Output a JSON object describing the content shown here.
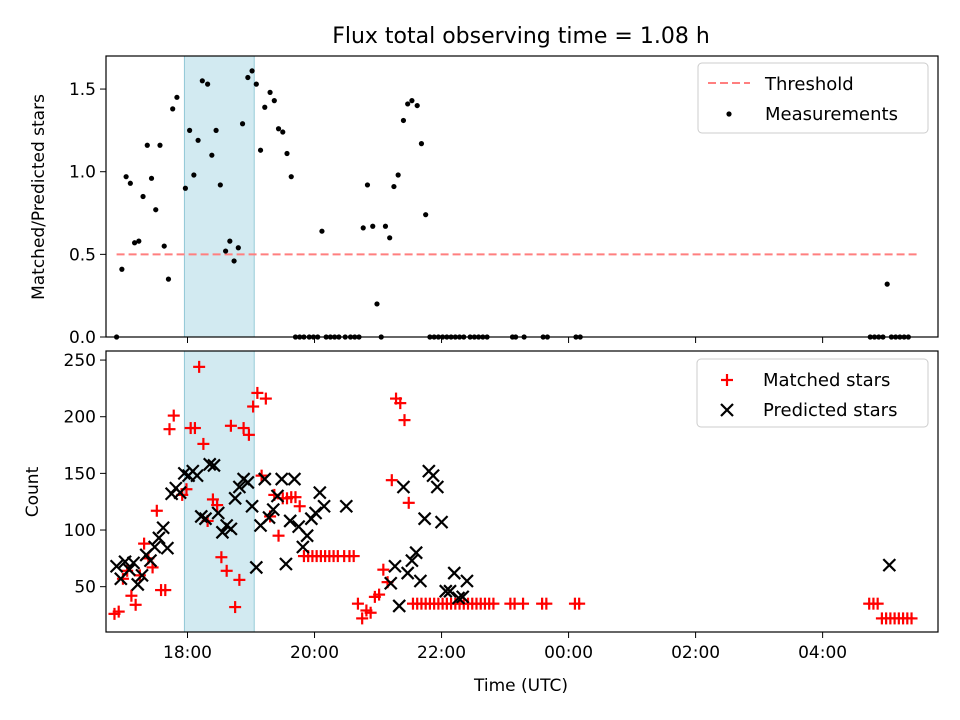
{
  "figure": {
    "title": "Flux total observing time = 1.08 h"
  },
  "chart_data": [
    {
      "type": "scatter",
      "panel": "top",
      "title": "Flux total observing time = 1.08 h",
      "xlabel": "",
      "ylabel": "Matched/Predicted stars",
      "xlim": [
        "16:43",
        "05:49"
      ],
      "ylim": [
        0,
        1.7
      ],
      "yticks": [
        0.0,
        0.5,
        1.0,
        1.5
      ],
      "ytick_labels": [
        "0.0",
        "0.5",
        "1.0",
        "1.5"
      ],
      "shaded_span": {
        "start": "17:57",
        "end": "19:03",
        "color": "#add8e6"
      },
      "legend_position": "top-right",
      "series": [
        {
          "name": "Threshold",
          "style": "dashed-line",
          "color": "#ff7f7f",
          "x": [
            "16:53",
            "05:30"
          ],
          "y": [
            0.5,
            0.5
          ]
        },
        {
          "name": "Measurements",
          "style": "dot",
          "color": "#000000",
          "x": [
            "16:53",
            "16:58",
            "17:02",
            "17:06",
            "17:10",
            "17:14",
            "17:18",
            "17:22",
            "17:26",
            "17:30",
            "17:34",
            "17:38",
            "17:42",
            "17:46",
            "17:50",
            "17:58",
            "18:02",
            "18:06",
            "18:10",
            "18:14",
            "18:19",
            "18:23",
            "18:27",
            "18:31",
            "18:36",
            "18:40",
            "18:44",
            "18:48",
            "18:52",
            "18:57",
            "19:01",
            "19:05",
            "19:09",
            "19:13",
            "19:18",
            "19:22",
            "19:26",
            "19:30",
            "19:34",
            "19:38",
            "19:42",
            "19:46",
            "19:50",
            "19:55",
            "19:59",
            "20:03",
            "20:07",
            "20:11",
            "20:15",
            "20:19",
            "20:23",
            "20:29",
            "20:34",
            "20:38",
            "20:42",
            "20:46",
            "20:50",
            "20:55",
            "20:59",
            "21:03",
            "21:07",
            "21:11",
            "21:15",
            "21:19",
            "21:24",
            "21:28",
            "21:32",
            "21:37",
            "21:41",
            "21:45",
            "21:49",
            "21:53",
            "21:57",
            "22:01",
            "22:05",
            "22:09",
            "22:13",
            "22:17",
            "22:21",
            "22:27",
            "22:31",
            "22:35",
            "22:39",
            "22:43",
            "23:07",
            "23:10",
            "23:18",
            "23:36",
            "23:40",
            "00:07",
            "00:11",
            "04:45",
            "04:49",
            "04:53",
            "04:57",
            "05:01",
            "05:05",
            "05:09",
            "05:13",
            "05:17",
            "05:21"
          ],
          "y": [
            0.0,
            0.41,
            0.97,
            0.93,
            0.57,
            0.58,
            0.85,
            1.16,
            0.96,
            0.77,
            1.16,
            0.55,
            0.35,
            1.38,
            1.45,
            0.9,
            1.25,
            0.98,
            1.19,
            1.55,
            1.53,
            1.1,
            1.25,
            0.92,
            0.52,
            0.58,
            0.46,
            0.54,
            1.29,
            1.57,
            1.61,
            1.53,
            1.13,
            1.39,
            1.48,
            1.43,
            1.26,
            1.24,
            1.11,
            0.97,
            0.0,
            0.0,
            0.0,
            0.0,
            0.0,
            0.0,
            0.64,
            0.0,
            0.0,
            0.0,
            0.0,
            0.0,
            0.0,
            0.0,
            0.0,
            0.66,
            0.92,
            0.67,
            0.2,
            0.0,
            0.67,
            0.6,
            0.91,
            0.98,
            1.31,
            1.41,
            1.43,
            1.4,
            1.17,
            0.74,
            0.0,
            0.0,
            0.0,
            0.0,
            0.0,
            0.0,
            0.0,
            0.0,
            0.0,
            0.0,
            0.0,
            0.0,
            0.0,
            0.0,
            0.0,
            0.0,
            0.0,
            0.0,
            0.0,
            0.0,
            0.0,
            0.0,
            0.0,
            0.0,
            0.0,
            0.32,
            0.0,
            0.0,
            0.0,
            0.0,
            0.0
          ]
        }
      ]
    },
    {
      "type": "scatter",
      "panel": "bottom",
      "title": "",
      "xlabel": "Time (UTC)",
      "ylabel": "Count",
      "xlim": [
        "16:43",
        "05:49"
      ],
      "ylim": [
        10,
        258
      ],
      "yticks": [
        50,
        100,
        150,
        200,
        250
      ],
      "xticks": [
        "18:00",
        "20:00",
        "22:00",
        "00:00",
        "02:00",
        "04:00"
      ],
      "shaded_span": {
        "start": "17:57",
        "end": "19:03",
        "color": "#add8e6"
      },
      "legend_position": "top-right",
      "series": [
        {
          "name": "Matched stars",
          "marker": "plus",
          "color": "#ff0000",
          "x": [
            "16:51",
            "16:55",
            "16:59",
            "17:03",
            "17:07",
            "17:11",
            "17:15",
            "17:19",
            "17:23",
            "17:27",
            "17:31",
            "17:35",
            "17:39",
            "17:43",
            "17:47",
            "17:55",
            "17:59",
            "18:03",
            "18:07",
            "18:11",
            "18:15",
            "18:19",
            "18:24",
            "18:28",
            "18:32",
            "18:37",
            "18:41",
            "18:45",
            "18:49",
            "18:53",
            "18:58",
            "19:02",
            "19:06",
            "19:10",
            "19:14",
            "19:18",
            "19:22",
            "19:26",
            "19:30",
            "19:34",
            "19:38",
            "19:42",
            "19:46",
            "19:50",
            "19:54",
            "19:58",
            "20:02",
            "20:06",
            "20:10",
            "20:14",
            "20:18",
            "20:22",
            "20:28",
            "20:33",
            "20:37",
            "20:41",
            "20:45",
            "20:49",
            "20:53",
            "20:57",
            "21:01",
            "21:05",
            "21:09",
            "21:13",
            "21:17",
            "21:21",
            "21:25",
            "21:29",
            "21:33",
            "21:37",
            "21:41",
            "21:45",
            "21:49",
            "21:53",
            "21:57",
            "22:01",
            "22:05",
            "22:09",
            "22:13",
            "22:17",
            "22:21",
            "22:25",
            "22:29",
            "22:33",
            "22:37",
            "22:41",
            "22:45",
            "22:49",
            "23:05",
            "23:09",
            "23:17",
            "23:35",
            "23:39",
            "00:06",
            "00:10",
            "04:44",
            "04:48",
            "04:52",
            "04:56",
            "05:00",
            "05:04",
            "05:08",
            "05:12",
            "05:16",
            "05:20",
            "05:24"
          ],
          "y": [
            26,
            28,
            57,
            64,
            42,
            34,
            60,
            88,
            75,
            67,
            117,
            47,
            47,
            189,
            201,
            131,
            136,
            190,
            190,
            244,
            176,
            108,
            127,
            122,
            76,
            64,
            192,
            32,
            56,
            190,
            184,
            209,
            221,
            148,
            216,
            112,
            131,
            95,
            128,
            128,
            129,
            129,
            121,
            77,
            77,
            77,
            77,
            77,
            77,
            77,
            77,
            77,
            77,
            77,
            77,
            35,
            22,
            29,
            27,
            41,
            43,
            65,
            54,
            144,
            216,
            212,
            197,
            124,
            35,
            35,
            35,
            35,
            35,
            35,
            35,
            35,
            35,
            35,
            35,
            35,
            35,
            35,
            35,
            35,
            35,
            35,
            35,
            35,
            35,
            35,
            35,
            35,
            35,
            35,
            35,
            35,
            35,
            35,
            22,
            22,
            22,
            22,
            22,
            22,
            22,
            22
          ]
        },
        {
          "name": "Predicted stars",
          "marker": "x",
          "color": "#000000",
          "x": [
            "16:53",
            "16:57",
            "17:01",
            "17:05",
            "17:09",
            "17:13",
            "17:17",
            "17:21",
            "17:25",
            "17:29",
            "17:33",
            "17:37",
            "17:41",
            "17:45",
            "17:49",
            "17:53",
            "17:57",
            "18:01",
            "18:05",
            "18:09",
            "18:13",
            "18:17",
            "18:21",
            "18:25",
            "18:29",
            "18:33",
            "18:37",
            "18:41",
            "18:45",
            "18:49",
            "18:53",
            "18:57",
            "19:01",
            "19:05",
            "19:09",
            "19:13",
            "19:17",
            "19:21",
            "19:25",
            "19:29",
            "19:33",
            "19:37",
            "19:41",
            "19:45",
            "19:49",
            "19:53",
            "19:57",
            "20:01",
            "20:05",
            "20:09",
            "20:30",
            "21:12",
            "21:16",
            "21:20",
            "21:24",
            "21:28",
            "21:32",
            "21:36",
            "21:40",
            "21:44",
            "21:48",
            "21:52",
            "21:56",
            "22:00",
            "22:04",
            "22:08",
            "22:12",
            "22:16",
            "22:20",
            "22:24",
            "05:03"
          ],
          "y": [
            68,
            57,
            72,
            65,
            71,
            52,
            60,
            78,
            73,
            85,
            93,
            102,
            84,
            132,
            137,
            133,
            150,
            148,
            152,
            148,
            112,
            110,
            158,
            157,
            115,
            98,
            104,
            101,
            128,
            138,
            145,
            142,
            121,
            67,
            104,
            145,
            111,
            118,
            130,
            145,
            70,
            108,
            145,
            103,
            85,
            95,
            110,
            115,
            133,
            121,
            121,
            53,
            68,
            33,
            138,
            62,
            73,
            80,
            55,
            110,
            152,
            148,
            138,
            107,
            46,
            46,
            62,
            40,
            41,
            55,
            69
          ]
        }
      ]
    }
  ]
}
